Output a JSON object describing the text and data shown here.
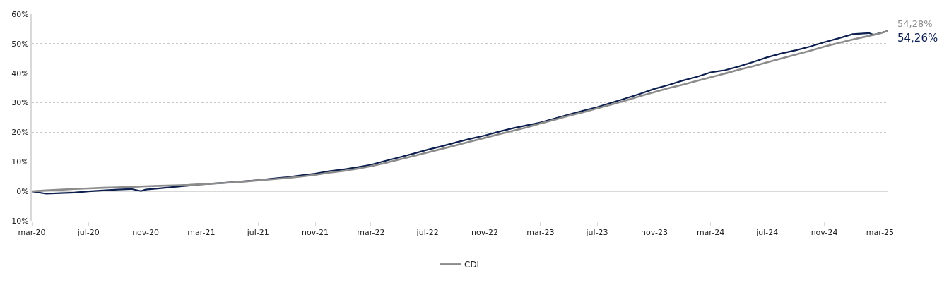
{
  "chart_data": {
    "type": "line",
    "series": [
      {
        "color": "#0d1f4f",
        "x": [
          "2020-03-01",
          "2020-04-01",
          "2020-05-01",
          "2020-06-01",
          "2020-07-01",
          "2020-08-01",
          "2020-09-01",
          "2020-10-01",
          "2020-10-22",
          "2020-11-01",
          "2020-12-01",
          "2021-01-01",
          "2021-02-01",
          "2021-03-01",
          "2021-04-01",
          "2021-05-01",
          "2021-06-01",
          "2021-07-01",
          "2021-08-01",
          "2021-09-01",
          "2021-10-01",
          "2021-11-01",
          "2021-12-01",
          "2022-01-01",
          "2022-02-01",
          "2022-03-01",
          "2022-04-01",
          "2022-05-01",
          "2022-06-01",
          "2022-07-01",
          "2022-08-01",
          "2022-09-01",
          "2022-10-01",
          "2022-11-01",
          "2022-12-01",
          "2023-01-01",
          "2023-02-01",
          "2023-03-01",
          "2023-04-01",
          "2023-05-01",
          "2023-06-01",
          "2023-07-01",
          "2023-08-01",
          "2023-09-01",
          "2023-10-01",
          "2023-11-01",
          "2023-12-01",
          "2024-01-01",
          "2024-02-01",
          "2024-03-01",
          "2024-04-01",
          "2024-05-01",
          "2024-06-01",
          "2024-07-01",
          "2024-08-01",
          "2024-09-01",
          "2024-10-01",
          "2024-11-01",
          "2024-12-01",
          "2025-01-01",
          "2025-02-05",
          "2025-02-15",
          "2025-03-01",
          "2025-03-17"
        ],
        "values": [
          0,
          -0.8,
          -0.6,
          -0.4,
          0.0,
          0.3,
          0.6,
          0.8,
          0.1,
          0.6,
          1.0,
          1.5,
          1.9,
          2.4,
          2.7,
          3.0,
          3.4,
          3.8,
          4.3,
          4.8,
          5.4,
          6.0,
          6.8,
          7.4,
          8.2,
          9.0,
          10.3,
          11.5,
          12.8,
          14.1,
          15.3,
          16.6,
          17.8,
          18.9,
          20.2,
          21.4,
          22.4,
          23.3,
          24.7,
          26.0,
          27.3,
          28.5,
          30.0,
          31.5,
          33.0,
          34.7,
          36.0,
          37.5,
          38.8,
          40.3,
          41.0,
          42.3,
          43.8,
          45.4,
          46.7,
          47.8,
          49.0,
          50.5,
          51.8,
          53.2,
          53.6,
          53.0,
          53.6,
          54.26
        ]
      },
      {
        "name": "CDI",
        "color": "#8c8c8c",
        "x": [
          "2020-03-01",
          "2020-04-01",
          "2020-05-01",
          "2020-06-01",
          "2020-07-01",
          "2020-08-01",
          "2020-09-01",
          "2020-10-01",
          "2020-11-01",
          "2020-12-01",
          "2021-01-01",
          "2021-02-01",
          "2021-03-01",
          "2021-04-01",
          "2021-05-01",
          "2021-06-01",
          "2021-07-01",
          "2021-08-01",
          "2021-09-01",
          "2021-10-01",
          "2021-11-01",
          "2021-12-01",
          "2022-01-01",
          "2022-02-01",
          "2022-03-01",
          "2022-04-01",
          "2022-05-01",
          "2022-06-01",
          "2022-07-01",
          "2022-08-01",
          "2022-09-01",
          "2022-10-01",
          "2022-11-01",
          "2022-12-01",
          "2023-01-01",
          "2023-02-01",
          "2023-03-01",
          "2023-04-01",
          "2023-05-01",
          "2023-06-01",
          "2023-07-01",
          "2023-08-01",
          "2023-09-01",
          "2023-10-01",
          "2023-11-01",
          "2023-12-01",
          "2024-01-01",
          "2024-02-01",
          "2024-03-01",
          "2024-04-01",
          "2024-05-01",
          "2024-06-01",
          "2024-07-01",
          "2024-08-01",
          "2024-09-01",
          "2024-10-01",
          "2024-11-01",
          "2024-12-01",
          "2025-01-01",
          "2025-02-01",
          "2025-03-01",
          "2025-03-17"
        ],
        "values": [
          0,
          0.3,
          0.55,
          0.8,
          1.0,
          1.2,
          1.35,
          1.5,
          1.7,
          1.85,
          2.0,
          2.15,
          2.4,
          2.65,
          2.95,
          3.3,
          3.7,
          4.1,
          4.5,
          5.0,
          5.6,
          6.3,
          6.9,
          7.7,
          8.5,
          9.6,
          10.8,
          12.0,
          13.2,
          14.4,
          15.6,
          16.9,
          18.1,
          19.3,
          20.5,
          21.7,
          23.0,
          24.3,
          25.6,
          26.8,
          28.1,
          29.4,
          30.8,
          32.2,
          33.6,
          34.9,
          36.1,
          37.4,
          38.6,
          39.9,
          41.2,
          42.4,
          43.7,
          45.0,
          46.3,
          47.6,
          49.0,
          50.2,
          51.4,
          52.5,
          53.5,
          54.28
        ]
      }
    ],
    "annotations": [
      {
        "text": "54,28%",
        "x": "2025-03-17",
        "y": 54.28
      },
      {
        "text": "54,26%",
        "x": "2025-03-17",
        "y": 54.26
      }
    ],
    "xlim": [
      "2020-03-01",
      "2025-03-17"
    ],
    "xticks": [
      {
        "value": "2020-03-01",
        "label": "mar-20"
      },
      {
        "value": "2020-07-01",
        "label": "jul-20"
      },
      {
        "value": "2020-11-01",
        "label": "nov-20"
      },
      {
        "value": "2021-03-01",
        "label": "mar-21"
      },
      {
        "value": "2021-07-01",
        "label": "jul-21"
      },
      {
        "value": "2021-11-01",
        "label": "nov-21"
      },
      {
        "value": "2022-03-01",
        "label": "mar-22"
      },
      {
        "value": "2022-07-01",
        "label": "jul-22"
      },
      {
        "value": "2022-11-01",
        "label": "nov-22"
      },
      {
        "value": "2023-03-01",
        "label": "mar-23"
      },
      {
        "value": "2023-07-01",
        "label": "jul-23"
      },
      {
        "value": "2023-11-01",
        "label": "nov-23"
      },
      {
        "value": "2024-03-01",
        "label": "mar-24"
      },
      {
        "value": "2024-07-01",
        "label": "jul-24"
      },
      {
        "value": "2024-11-01",
        "label": "nov-24"
      },
      {
        "value": "2025-03-01",
        "label": "mar-25"
      }
    ],
    "ylim": [
      -10,
      60
    ],
    "yticks": [
      {
        "value": -10,
        "label": "-10%"
      },
      {
        "value": 0,
        "label": "0%"
      },
      {
        "value": 10,
        "label": "10%"
      },
      {
        "value": 20,
        "label": "20%"
      },
      {
        "value": 30,
        "label": "30%"
      },
      {
        "value": 40,
        "label": "40%"
      },
      {
        "value": 50,
        "label": "50%"
      },
      {
        "value": 60,
        "label": "60%"
      }
    ],
    "grid": "y",
    "legend": "bottom",
    "marker": "none",
    "line_style": "solid"
  }
}
